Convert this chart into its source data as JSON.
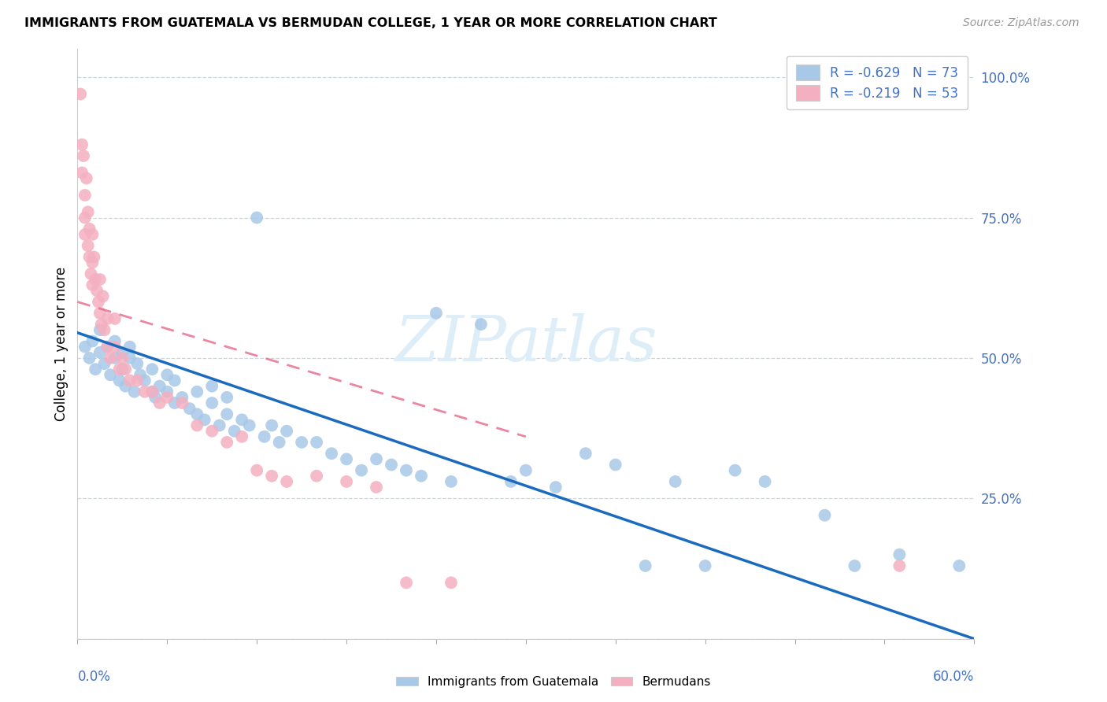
{
  "title": "IMMIGRANTS FROM GUATEMALA VS BERMUDAN COLLEGE, 1 YEAR OR MORE CORRELATION CHART",
  "source": "Source: ZipAtlas.com",
  "ylabel": "College, 1 year or more",
  "xmin": 0.0,
  "xmax": 0.6,
  "ymin": 0.0,
  "ymax": 1.05,
  "blue_color": "#a8c8e8",
  "pink_color": "#f4b0c0",
  "blue_line_color": "#1a6bbf",
  "pink_line_color": "#e87090",
  "watermark_color": "#ddeef8",
  "legend_blue_r": -0.629,
  "legend_blue_n": 73,
  "legend_pink_r": -0.219,
  "legend_pink_n": 53,
  "blue_x": [
    0.005,
    0.008,
    0.01,
    0.012,
    0.015,
    0.015,
    0.018,
    0.02,
    0.022,
    0.025,
    0.025,
    0.028,
    0.03,
    0.03,
    0.032,
    0.035,
    0.035,
    0.038,
    0.04,
    0.042,
    0.045,
    0.05,
    0.05,
    0.052,
    0.055,
    0.06,
    0.06,
    0.065,
    0.065,
    0.07,
    0.075,
    0.08,
    0.08,
    0.085,
    0.09,
    0.09,
    0.095,
    0.1,
    0.1,
    0.105,
    0.11,
    0.115,
    0.12,
    0.125,
    0.13,
    0.135,
    0.14,
    0.15,
    0.16,
    0.17,
    0.18,
    0.19,
    0.2,
    0.21,
    0.22,
    0.23,
    0.24,
    0.25,
    0.27,
    0.29,
    0.3,
    0.32,
    0.34,
    0.36,
    0.38,
    0.4,
    0.42,
    0.44,
    0.46,
    0.5,
    0.52,
    0.55,
    0.59
  ],
  "blue_y": [
    0.52,
    0.5,
    0.53,
    0.48,
    0.55,
    0.51,
    0.49,
    0.52,
    0.47,
    0.5,
    0.53,
    0.46,
    0.51,
    0.48,
    0.45,
    0.5,
    0.52,
    0.44,
    0.49,
    0.47,
    0.46,
    0.44,
    0.48,
    0.43,
    0.45,
    0.44,
    0.47,
    0.42,
    0.46,
    0.43,
    0.41,
    0.4,
    0.44,
    0.39,
    0.42,
    0.45,
    0.38,
    0.4,
    0.43,
    0.37,
    0.39,
    0.38,
    0.75,
    0.36,
    0.38,
    0.35,
    0.37,
    0.35,
    0.35,
    0.33,
    0.32,
    0.3,
    0.32,
    0.31,
    0.3,
    0.29,
    0.58,
    0.28,
    0.56,
    0.28,
    0.3,
    0.27,
    0.33,
    0.31,
    0.13,
    0.28,
    0.13,
    0.3,
    0.28,
    0.22,
    0.13,
    0.15,
    0.13
  ],
  "pink_x": [
    0.002,
    0.003,
    0.003,
    0.004,
    0.005,
    0.005,
    0.005,
    0.006,
    0.007,
    0.007,
    0.008,
    0.008,
    0.009,
    0.01,
    0.01,
    0.01,
    0.011,
    0.012,
    0.013,
    0.014,
    0.015,
    0.015,
    0.016,
    0.017,
    0.018,
    0.02,
    0.02,
    0.022,
    0.025,
    0.025,
    0.028,
    0.03,
    0.032,
    0.035,
    0.04,
    0.045,
    0.05,
    0.055,
    0.06,
    0.07,
    0.08,
    0.09,
    0.1,
    0.11,
    0.12,
    0.13,
    0.14,
    0.16,
    0.18,
    0.2,
    0.22,
    0.25,
    0.55
  ],
  "pink_y": [
    0.97,
    0.88,
    0.83,
    0.86,
    0.79,
    0.75,
    0.72,
    0.82,
    0.76,
    0.7,
    0.68,
    0.73,
    0.65,
    0.72,
    0.67,
    0.63,
    0.68,
    0.64,
    0.62,
    0.6,
    0.58,
    0.64,
    0.56,
    0.61,
    0.55,
    0.57,
    0.52,
    0.5,
    0.52,
    0.57,
    0.48,
    0.5,
    0.48,
    0.46,
    0.46,
    0.44,
    0.44,
    0.42,
    0.43,
    0.42,
    0.38,
    0.37,
    0.35,
    0.36,
    0.3,
    0.29,
    0.28,
    0.29,
    0.28,
    0.27,
    0.1,
    0.1,
    0.13
  ],
  "blue_line_x0": 0.0,
  "blue_line_x1": 0.6,
  "blue_line_y0": 0.545,
  "blue_line_y1": 0.0,
  "pink_line_x0": 0.0,
  "pink_line_x1": 0.3,
  "pink_line_y0": 0.6,
  "pink_line_y1": 0.36
}
